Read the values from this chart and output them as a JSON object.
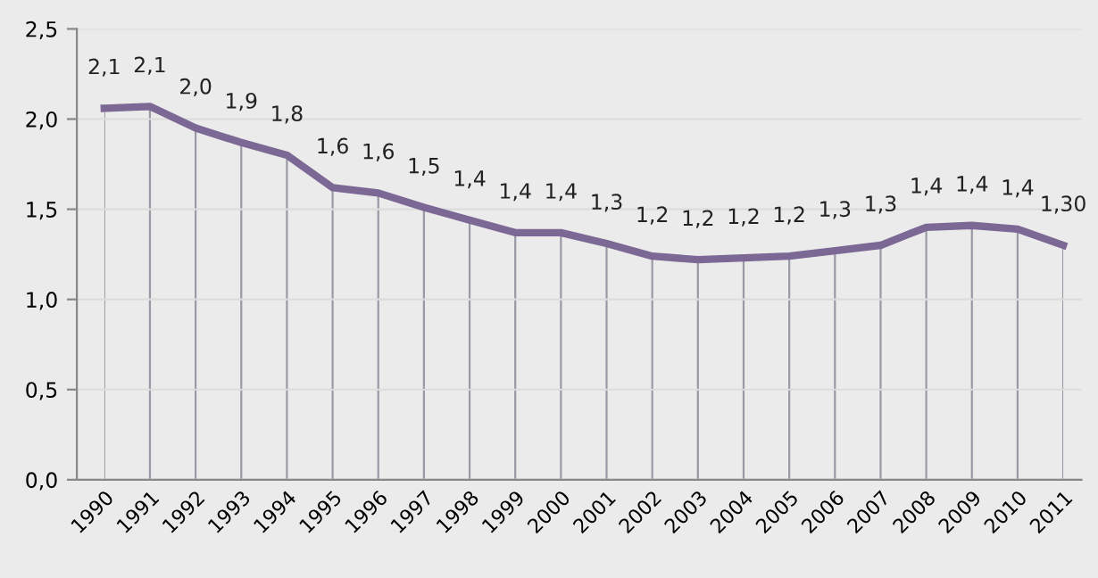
{
  "chart_data": {
    "type": "line",
    "categories": [
      "1990",
      "1991",
      "1992",
      "1993",
      "1994",
      "1995",
      "1996",
      "1997",
      "1998",
      "1999",
      "2000",
      "2001",
      "2002",
      "2003",
      "2004",
      "2005",
      "2006",
      "2007",
      "2008",
      "2009",
      "2010",
      "2011"
    ],
    "series": [
      {
        "color": "#7b6894",
        "values": [
          2.06,
          2.07,
          1.95,
          1.87,
          1.8,
          1.62,
          1.59,
          1.51,
          1.44,
          1.37,
          1.37,
          1.31,
          1.24,
          1.22,
          1.23,
          1.24,
          1.27,
          1.3,
          1.4,
          1.41,
          1.39,
          1.3
        ],
        "value_labels": [
          "2,1",
          "2,1",
          "2,0",
          "1,9",
          "1,8",
          "1,6",
          "1,6",
          "1,5",
          "1,4",
          "1,4",
          "1,4",
          "1,3",
          "1,2",
          "1,2",
          "1,2",
          "1,2",
          "1,3",
          "1,3",
          "1,4",
          "1,4",
          "1,4",
          "1,30"
        ]
      }
    ],
    "ylim": [
      0,
      2.5
    ],
    "yticks": [
      {
        "value": 0,
        "label": "0,0"
      },
      {
        "value": 0.5,
        "label": "0,5"
      },
      {
        "value": 1,
        "label": "1,0"
      },
      {
        "value": 1.5,
        "label": "1,5"
      },
      {
        "value": 2,
        "label": "2,0"
      },
      {
        "value": 2.5,
        "label": "2,5"
      }
    ],
    "grid": true,
    "marker": "none",
    "line_style": "solid"
  }
}
